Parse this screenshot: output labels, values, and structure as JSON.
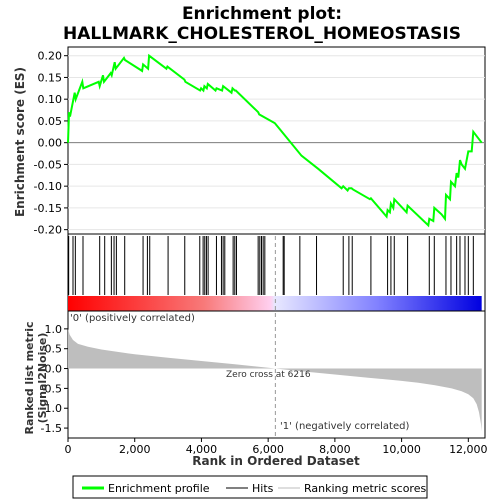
{
  "chart_data": {
    "type": "line",
    "title_line1": "Enrichment plot:",
    "title_line2": "HALLMARK_CHOLESTEROL_HOMEOSTASIS",
    "top_panel": {
      "ylabel": "Enrichment score (ES)",
      "ylim": [
        -0.21,
        0.22
      ],
      "yticks": [
        -0.2,
        -0.15,
        -0.1,
        -0.05,
        0.0,
        0.05,
        0.1,
        0.15,
        0.2
      ],
      "ytick_labels": [
        "-0.20",
        "-0.15",
        "-0.10",
        "-0.05",
        "0.00",
        "0.05",
        "0.10",
        "0.15",
        "0.20"
      ],
      "series": [
        {
          "name": "Enrichment profile",
          "color": "#00ff00",
          "x": [
            0,
            30,
            60,
            200,
            230,
            430,
            460,
            920,
            950,
            1050,
            1080,
            1280,
            1310,
            1400,
            1430,
            1680,
            1710,
            2220,
            2250,
            2400,
            2430,
            2950,
            2980,
            3490,
            3520,
            3960,
            3990,
            4060,
            4090,
            4160,
            4190,
            4420,
            4450,
            4620,
            4650,
            4900,
            4930,
            5000,
            5030,
            5700,
            5730,
            6200,
            7000,
            7500,
            8200,
            8250,
            8380,
            8420,
            8500,
            8550,
            9050,
            9080,
            9550,
            9580,
            9650,
            9680,
            9750,
            9780,
            10150,
            10180,
            10800,
            10830,
            10950,
            10980,
            11200,
            11300,
            11330,
            11450,
            11480,
            11600,
            11650,
            11700,
            11750,
            11800,
            11900,
            12000,
            12100,
            12150,
            12250,
            12400
          ],
          "y": [
            0.0,
            0.07,
            0.06,
            0.115,
            0.1,
            0.14,
            0.125,
            0.14,
            0.13,
            0.155,
            0.14,
            0.16,
            0.155,
            0.185,
            0.17,
            0.195,
            0.19,
            0.165,
            0.18,
            0.17,
            0.2,
            0.17,
            0.175,
            0.145,
            0.14,
            0.12,
            0.125,
            0.12,
            0.13,
            0.125,
            0.135,
            0.12,
            0.125,
            0.12,
            0.13,
            0.115,
            0.125,
            0.12,
            0.12,
            0.07,
            0.065,
            0.045,
            -0.03,
            -0.06,
            -0.105,
            -0.1,
            -0.11,
            -0.105,
            -0.105,
            -0.108,
            -0.13,
            -0.128,
            -0.17,
            -0.155,
            -0.16,
            -0.14,
            -0.15,
            -0.13,
            -0.16,
            -0.145,
            -0.19,
            -0.175,
            -0.18,
            -0.15,
            -0.165,
            -0.175,
            -0.12,
            -0.13,
            -0.09,
            -0.1,
            -0.07,
            -0.08,
            -0.04,
            -0.05,
            -0.06,
            -0.02,
            -0.02,
            0.025,
            0.015,
            0.0
          ]
        }
      ]
    },
    "hits": [
      20,
      150,
      220,
      450,
      950,
      1100,
      1300,
      1380,
      1450,
      1700,
      2250,
      2380,
      2450,
      3000,
      3500,
      3950,
      4050,
      4100,
      4150,
      4200,
      4450,
      4600,
      4650,
      4700,
      4950,
      5000,
      5050,
      5700,
      5750,
      5800,
      5850,
      5900,
      6450,
      6480,
      6950,
      7450,
      8250,
      8420,
      8520,
      9080,
      9580,
      9680,
      9780,
      10180,
      10830,
      10980,
      11330,
      11480,
      11650,
      11750,
      11900,
      12000,
      12150
    ],
    "bottom_panel": {
      "ylabel_line1": "Ranked list metric",
      "ylabel_line2": "(Signal2Noise)",
      "xlabel": "Rank in Ordered Dataset",
      "ylim": [
        -1.75,
        1.45
      ],
      "yticks": [
        -1.5,
        -1.0,
        -0.5,
        0.0,
        0.5,
        1.0
      ],
      "ytick_labels": [
        "-1.5",
        "-1.0",
        "-0.5",
        "0.0",
        "0.5",
        "1.0"
      ],
      "xlim": [
        0,
        12500
      ],
      "xticks": [
        0,
        2000,
        4000,
        6000,
        8000,
        10000,
        12000
      ],
      "xtick_labels": [
        "0",
        "2,000",
        "4,000",
        "6,000",
        "8,000",
        "10,000",
        "12,000"
      ],
      "metric_x": [
        0,
        50,
        150,
        300,
        600,
        1000,
        2000,
        3000,
        4000,
        5000,
        6216,
        7000,
        8000,
        9000,
        10000,
        10500,
        11000,
        11500,
        11800,
        12000,
        12150,
        12250,
        12320,
        12380,
        12400
      ],
      "metric_y": [
        1.0,
        0.85,
        0.72,
        0.62,
        0.55,
        0.48,
        0.36,
        0.27,
        0.19,
        0.11,
        0.0,
        -0.07,
        -0.15,
        -0.23,
        -0.31,
        -0.36,
        -0.42,
        -0.5,
        -0.57,
        -0.65,
        -0.75,
        -0.9,
        -1.1,
        -1.4,
        -1.58
      ],
      "zero_cross_label": "Zero cross at 6216",
      "zero_cross_x": 6216,
      "pos_label": "'0' (positively correlated)",
      "neg_label": "'1' (negatively correlated)",
      "pos_color": "#ff0000",
      "neg_color": "#0000ff"
    },
    "legend": {
      "items": [
        {
          "label": "Enrichment profile",
          "color": "#00ff00"
        },
        {
          "label": "Hits",
          "color": "#000000"
        },
        {
          "label": "Ranking metric scores",
          "color": "#bebebe"
        }
      ]
    }
  }
}
